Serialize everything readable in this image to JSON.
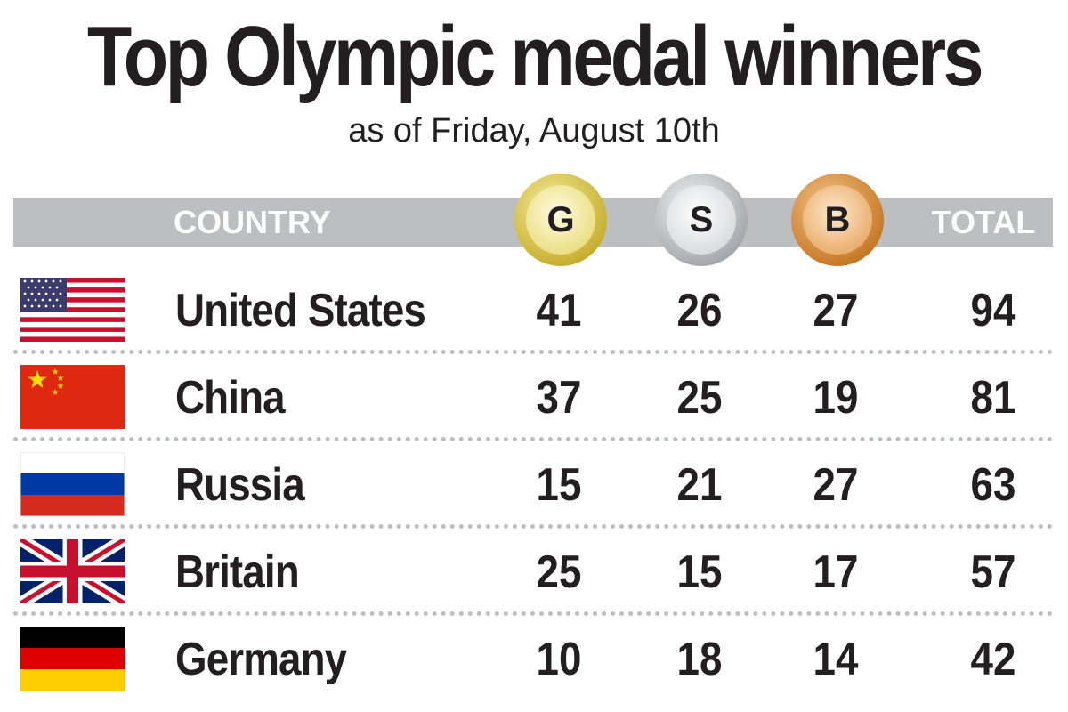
{
  "title": "Top Olympic medal winners",
  "subtitle": "as of Friday, August 10th",
  "header": {
    "country": "COUNTRY",
    "gold": "G",
    "silver": "S",
    "bronze": "B",
    "total": "TOTAL"
  },
  "colors": {
    "header_bar": "#bcbec0",
    "gold": "#c9b234",
    "silver": "#a8acb0",
    "bronze": "#c87c2a",
    "text": "#231f20"
  },
  "chart_data": {
    "type": "table",
    "columns": [
      "COUNTRY",
      "G",
      "S",
      "B",
      "TOTAL"
    ],
    "rows": [
      {
        "flag": "us-flag-icon",
        "country": "United States",
        "gold": "41",
        "silver": "26",
        "bronze": "27",
        "total": "94"
      },
      {
        "flag": "china-flag-icon",
        "country": "China",
        "gold": "37",
        "silver": "25",
        "bronze": "19",
        "total": "81"
      },
      {
        "flag": "russia-flag-icon",
        "country": "Russia",
        "gold": "15",
        "silver": "21",
        "bronze": "27",
        "total": "63"
      },
      {
        "flag": "uk-flag-icon",
        "country": "Britain",
        "gold": "25",
        "silver": "15",
        "bronze": "17",
        "total": "57"
      },
      {
        "flag": "germany-flag-icon",
        "country": "Germany",
        "gold": "10",
        "silver": "18",
        "bronze": "14",
        "total": "42"
      }
    ]
  }
}
